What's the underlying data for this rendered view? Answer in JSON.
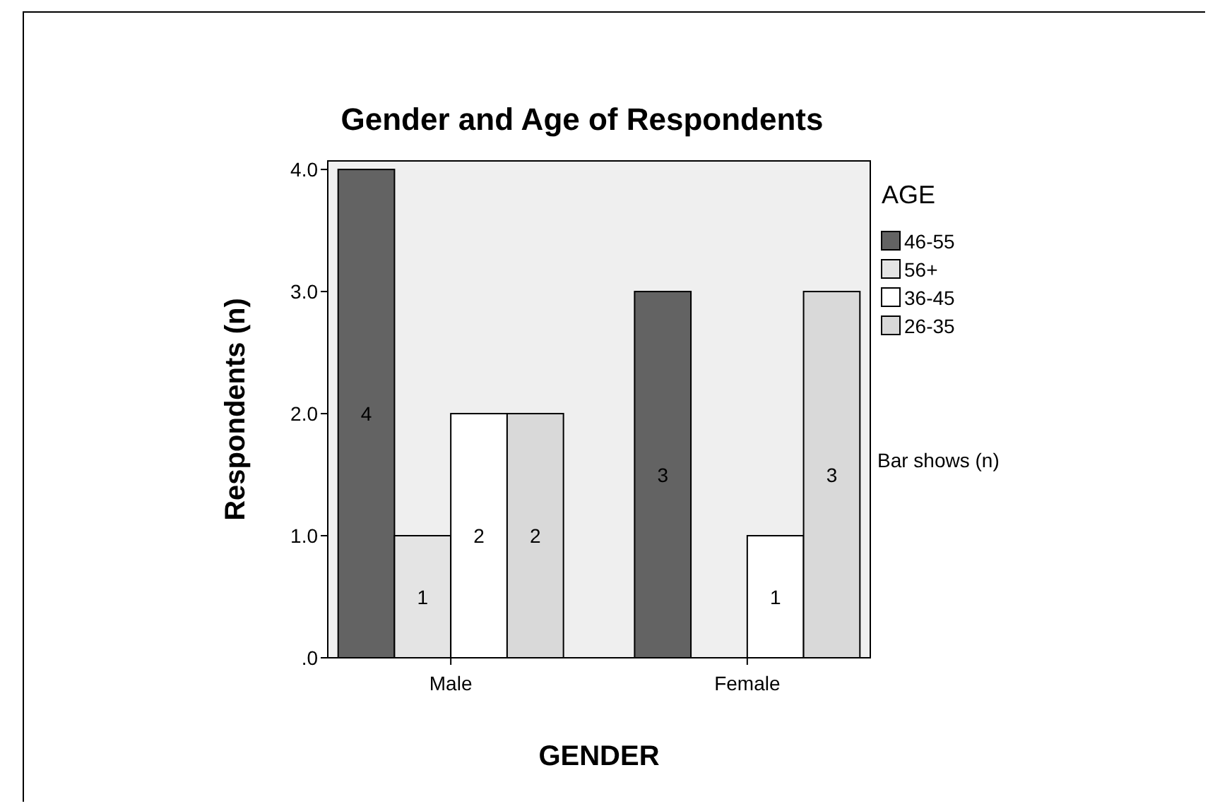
{
  "chart_data": {
    "type": "bar",
    "title": "Gender and Age of Respondents",
    "xlabel": "GENDER",
    "ylabel": "Respondents (n)",
    "legend_title": "AGE",
    "annotations": [
      "Bar shows (n)"
    ],
    "categories": [
      "Male",
      "Female"
    ],
    "series": [
      {
        "name": "46-55",
        "color": "#636363",
        "values": [
          4,
          3
        ]
      },
      {
        "name": "56+",
        "color": "#e4e4e4",
        "values": [
          1,
          null
        ]
      },
      {
        "name": "36-45",
        "color": "#ffffff",
        "values": [
          2,
          1
        ]
      },
      {
        "name": "26-35",
        "color": "#d9d9d9",
        "values": [
          2,
          3
        ]
      }
    ],
    "ylim": [
      0,
      4.07
    ],
    "yticks": [
      {
        "value": 0,
        "label": ".0"
      },
      {
        "value": 1,
        "label": "1.0"
      },
      {
        "value": 2,
        "label": "2.0"
      },
      {
        "value": 3,
        "label": "3.0"
      },
      {
        "value": 4,
        "label": "4.0"
      }
    ],
    "grid": false,
    "legend": "right",
    "data_labels": true
  }
}
